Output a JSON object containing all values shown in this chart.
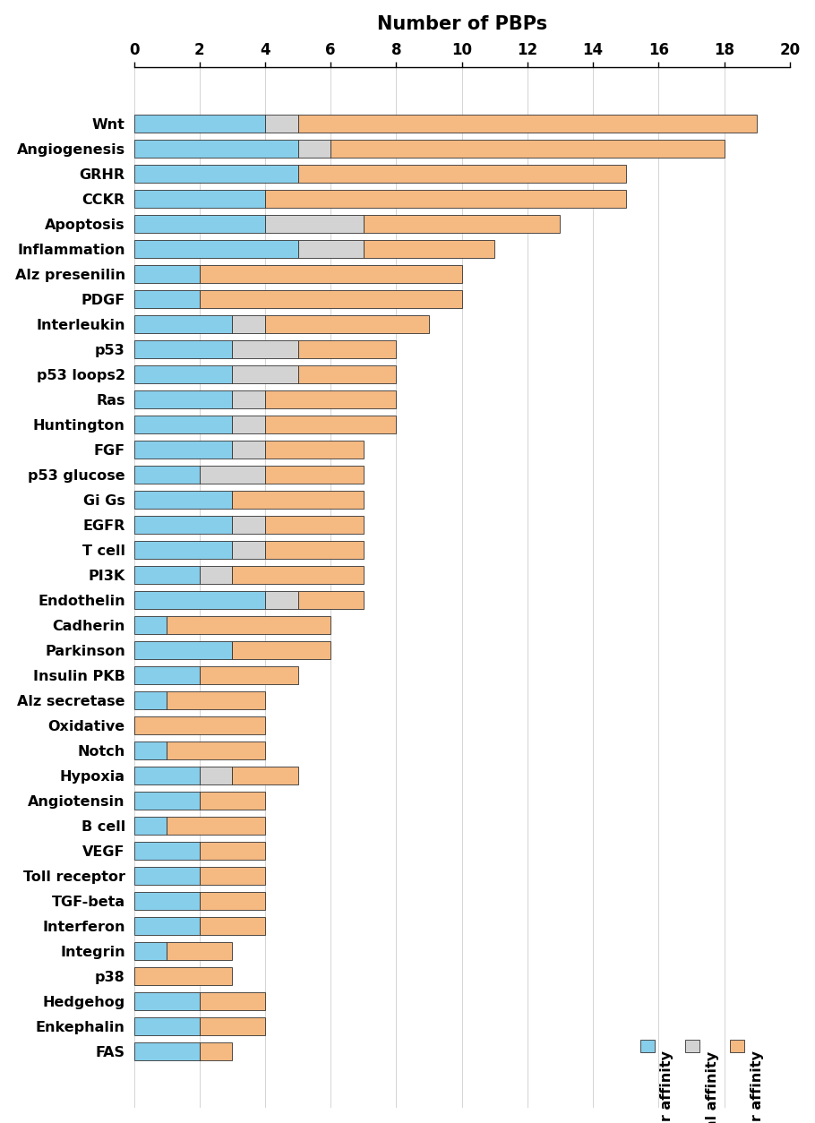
{
  "categories": [
    "Wnt",
    "Angiogenesis",
    "GRHR",
    "CCKR",
    "Apoptosis",
    "Inflammation",
    "Alz presenilin",
    "PDGF",
    "Interleukin",
    "p53",
    "p53 loops2",
    "Ras",
    "Huntington",
    "FGF",
    "p53 glucose",
    "Gi Gs",
    "EGFR",
    "T cell",
    "PI3K",
    "Endothelin",
    "Cadherin",
    "Parkinson",
    "Insulin PKB",
    "Alz secretase",
    "Oxidative",
    "Notch",
    "Hypoxia",
    "Angiotensin",
    "B cell",
    "VEGF",
    "Toll receptor",
    "TGF-beta",
    "Interferon",
    "Integrin",
    "p38",
    "Hedgehog",
    "Enkephalin",
    "FAS"
  ],
  "lower": [
    4,
    5,
    5,
    4,
    4,
    5,
    2,
    2,
    3,
    3,
    3,
    3,
    3,
    3,
    2,
    3,
    3,
    3,
    2,
    4,
    1,
    3,
    2,
    1,
    0,
    1,
    2,
    2,
    1,
    2,
    2,
    2,
    2,
    1,
    0,
    2,
    2,
    2
  ],
  "equal": [
    1,
    1,
    0,
    0,
    3,
    2,
    0,
    0,
    1,
    2,
    2,
    1,
    1,
    1,
    2,
    0,
    1,
    1,
    1,
    1,
    0,
    0,
    0,
    0,
    0,
    0,
    1,
    0,
    0,
    0,
    0,
    0,
    0,
    0,
    0,
    0,
    0,
    0
  ],
  "higher": [
    14,
    12,
    10,
    11,
    6,
    4,
    8,
    8,
    5,
    3,
    3,
    4,
    4,
    3,
    3,
    4,
    3,
    3,
    4,
    2,
    5,
    3,
    3,
    3,
    4,
    3,
    2,
    2,
    3,
    2,
    2,
    2,
    2,
    2,
    3,
    2,
    2,
    1
  ],
  "color_lower": "#87CEEB",
  "color_equal": "#D3D3D3",
  "color_higher": "#F5B982",
  "title": "Number of PBPs",
  "xlim": [
    0,
    20
  ],
  "xticks": [
    0,
    2,
    4,
    6,
    8,
    10,
    12,
    14,
    16,
    18,
    20
  ],
  "legend_labels": [
    "Lower affinity",
    "Equal affinity",
    "Higher affinity"
  ],
  "bar_height": 0.72
}
